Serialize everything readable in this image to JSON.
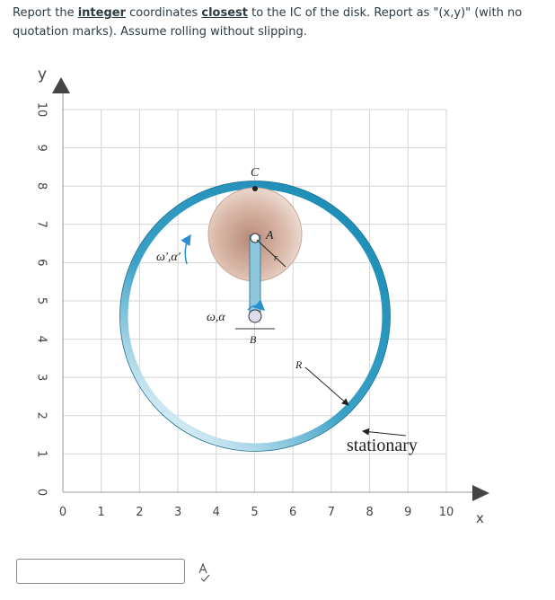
{
  "question": {
    "parts": [
      "Report the ",
      "integer",
      " coordinates ",
      "closest",
      " to the IC of the disk. Report as \"(x,y)\" (with no quotation marks). Assume rolling without slipping."
    ]
  },
  "diagram": {
    "x_axis_label": "x",
    "y_axis_label": "y",
    "x_ticks": [
      0,
      1,
      2,
      3,
      4,
      5,
      6,
      7,
      8,
      9,
      10
    ],
    "y_ticks": [
      0,
      1,
      2,
      3,
      4,
      5,
      6,
      7,
      8,
      9,
      10
    ],
    "labels": {
      "C": "C",
      "A": "A",
      "r": "r",
      "omega_prime": "ω',α'",
      "omega": "ω,α",
      "B": "B",
      "R": "R",
      "stationary": "stationary"
    }
  }
}
